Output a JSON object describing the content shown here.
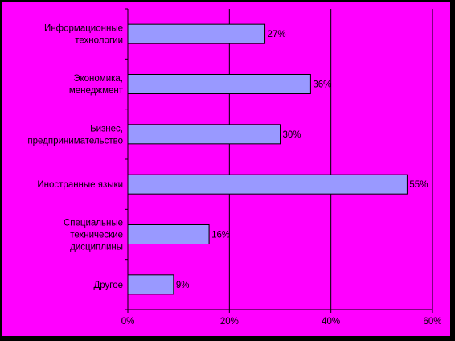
{
  "chart_data": {
    "type": "bar",
    "orientation": "horizontal",
    "categories": [
      [
        "Информационные",
        "технологии"
      ],
      [
        "Экономика,",
        "менеджмент"
      ],
      [
        "Бизнес,",
        "предпринимательство"
      ],
      [
        "Иностранные языки"
      ],
      [
        "Специальные",
        "технические",
        "дисциплины"
      ],
      [
        "Другое"
      ]
    ],
    "values": [
      27,
      36,
      30,
      55,
      16,
      9
    ],
    "data_labels": [
      "27%",
      "36%",
      "30%",
      "55%",
      "16%",
      "9%"
    ],
    "x_ticks": [
      0,
      20,
      40,
      60
    ],
    "x_tick_labels": [
      "0%",
      "20%",
      "40%",
      "60%"
    ],
    "xlim": [
      0,
      60
    ],
    "title": "",
    "xlabel": "",
    "ylabel": "",
    "grid": "vertical",
    "legend": "none",
    "colors": {
      "outer_background": "#000000",
      "plot_background": "#ff00ff",
      "bar_fill": "#9999ff",
      "bar_stroke": "#000000",
      "grid": "#000000",
      "text": "#000000"
    }
  }
}
